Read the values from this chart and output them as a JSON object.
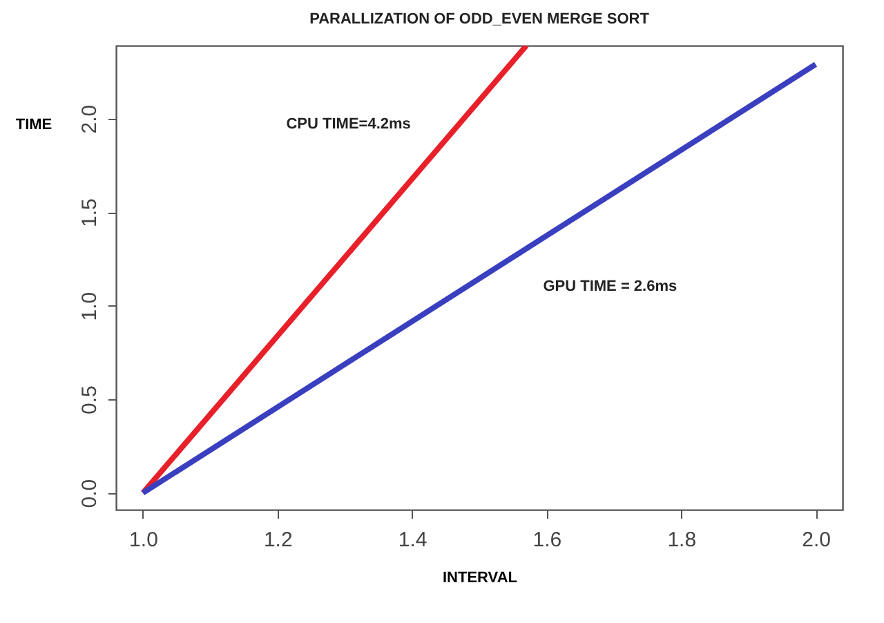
{
  "chart_data": {
    "type": "line",
    "title": "PARALLIZATION OF ODD_EVEN MERGE SORT",
    "xlabel": "INTERVAL",
    "ylabel": "TIME",
    "series": [
      {
        "color": "#e8202a",
        "x": [
          1.0,
          1.57
        ],
        "values": [
          0,
          2.39
        ]
      },
      {
        "color": "#3a3fc0",
        "x": [
          1.0,
          2.0
        ],
        "values": [
          0,
          2.29
        ]
      }
    ],
    "xlim": [
      0.96,
      2.04
    ],
    "xticks": [
      {
        "value": 1.0,
        "label": "1.0"
      },
      {
        "value": 1.2,
        "label": "1.2"
      },
      {
        "value": 1.4,
        "label": "1.4"
      },
      {
        "value": 1.6,
        "label": "1.6"
      },
      {
        "value": 1.8,
        "label": "1.8"
      },
      {
        "value": 2.0,
        "label": "2.0"
      }
    ],
    "ylim": [
      -0.09,
      2.39
    ],
    "yticks": [
      {
        "value": 0,
        "label": "0.0"
      },
      {
        "value": 0.5,
        "label": "0.5"
      },
      {
        "value": 1.0,
        "label": "1.0"
      },
      {
        "value": 1.5,
        "label": "1.5"
      },
      {
        "value": 2.0,
        "label": "2.0"
      }
    ],
    "annotations": [
      "CPU TIME=4.2ms",
      "GPU TIME = 2.6ms"
    ],
    "grid": false,
    "line_style": "solid",
    "marker": "none"
  }
}
